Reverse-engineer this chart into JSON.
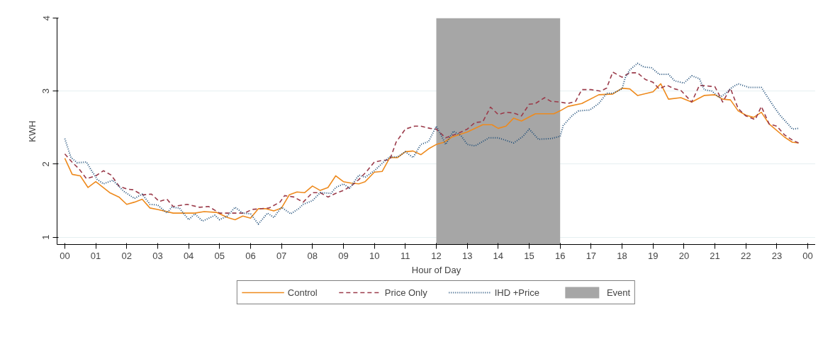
{
  "chart_data": {
    "type": "line",
    "xlabel": "Hour of Day",
    "ylabel": "KWH",
    "xlim": [
      -0.25,
      24.25
    ],
    "ylim": [
      0.9,
      4
    ],
    "xticks": [
      {
        "value": 0,
        "label": "00"
      },
      {
        "value": 1,
        "label": "01"
      },
      {
        "value": 2,
        "label": "02"
      },
      {
        "value": 3,
        "label": "03"
      },
      {
        "value": 4,
        "label": "04"
      },
      {
        "value": 5,
        "label": "05"
      },
      {
        "value": 6,
        "label": "06"
      },
      {
        "value": 7,
        "label": "07"
      },
      {
        "value": 8,
        "label": "08"
      },
      {
        "value": 9,
        "label": "09"
      },
      {
        "value": 10,
        "label": "10"
      },
      {
        "value": 11,
        "label": "11"
      },
      {
        "value": 12,
        "label": "12"
      },
      {
        "value": 13,
        "label": "13"
      },
      {
        "value": 14,
        "label": "14"
      },
      {
        "value": 15,
        "label": "15"
      },
      {
        "value": 16,
        "label": "16"
      },
      {
        "value": 17,
        "label": "17"
      },
      {
        "value": 18,
        "label": "18"
      },
      {
        "value": 19,
        "label": "19"
      },
      {
        "value": 20,
        "label": "20"
      },
      {
        "value": 21,
        "label": "21"
      },
      {
        "value": 22,
        "label": "22"
      },
      {
        "value": 23,
        "label": "23"
      },
      {
        "value": 24,
        "label": "00"
      }
    ],
    "yticks": [
      1,
      2,
      3,
      4
    ],
    "grid": "y",
    "legend": "bottom",
    "marker": "none",
    "bands": [
      {
        "axis": "x",
        "from": 12,
        "to": 16,
        "label": "Event",
        "color": "#a6a6a6"
      }
    ],
    "series": [
      {
        "name": "Control",
        "color": "#ee8a1d",
        "line_style": "solid",
        "x": [
          0,
          0.24,
          0.5,
          0.75,
          1,
          1.45,
          1.75,
          2,
          2.25,
          2.5,
          2.75,
          3,
          3.5,
          4.2,
          4.5,
          4.9,
          5.25,
          5.5,
          5.75,
          6,
          6.25,
          6.5,
          6.75,
          7,
          7.25,
          7.5,
          7.75,
          8,
          8.25,
          8.5,
          8.75,
          9,
          9.25,
          9.5,
          9.7,
          10,
          10.25,
          10.5,
          10.75,
          11,
          11.25,
          11.5,
          11.75,
          12,
          12.25,
          12.5,
          13,
          13.5,
          13.8,
          14,
          14.25,
          14.5,
          14.75,
          15.2,
          15.8,
          16,
          16.25,
          16.7,
          17.25,
          17.7,
          18,
          18.25,
          18.5,
          19,
          19.25,
          19.5,
          19.9,
          20.25,
          20.65,
          21,
          21.25,
          21.5,
          21.75,
          22,
          22.25,
          22.5,
          22.75,
          23.25,
          23.5,
          23.7
        ],
        "values": [
          2.08,
          1.86,
          1.84,
          1.68,
          1.76,
          1.61,
          1.55,
          1.45,
          1.48,
          1.52,
          1.4,
          1.38,
          1.33,
          1.33,
          1.35,
          1.34,
          1.27,
          1.24,
          1.29,
          1.26,
          1.39,
          1.39,
          1.36,
          1.4,
          1.58,
          1.62,
          1.61,
          1.7,
          1.64,
          1.68,
          1.84,
          1.76,
          1.74,
          1.73,
          1.76,
          1.89,
          1.9,
          2.09,
          2.09,
          2.17,
          2.18,
          2.13,
          2.21,
          2.27,
          2.3,
          2.37,
          2.44,
          2.54,
          2.54,
          2.49,
          2.52,
          2.63,
          2.59,
          2.69,
          2.69,
          2.73,
          2.79,
          2.83,
          2.95,
          2.96,
          3.04,
          3.03,
          2.94,
          2.99,
          3.1,
          2.89,
          2.91,
          2.85,
          2.94,
          2.95,
          2.89,
          2.88,
          2.73,
          2.67,
          2.64,
          2.71,
          2.55,
          2.37,
          2.3,
          2.29
        ]
      },
      {
        "name": "Price Only",
        "color": "#9b3b4a",
        "line_style": "dashed",
        "x": [
          0,
          0.25,
          0.45,
          0.7,
          1,
          1.25,
          1.5,
          1.75,
          2,
          2.2,
          2.5,
          2.8,
          3.05,
          3.3,
          3.5,
          3.95,
          4.35,
          4.65,
          5,
          5.5,
          5.8,
          6.05,
          6.6,
          6.95,
          7.1,
          7.4,
          7.7,
          8,
          8.25,
          8.5,
          8.75,
          9,
          9.25,
          9.5,
          9.75,
          10,
          10.25,
          10.5,
          10.7,
          11,
          11.3,
          11.5,
          11.8,
          12,
          12.3,
          12.7,
          13,
          13.25,
          13.5,
          13.75,
          14,
          14.25,
          14.5,
          14.75,
          15,
          15.2,
          15.5,
          15.7,
          16,
          16.25,
          16.5,
          16.7,
          17,
          17.3,
          17.5,
          17.7,
          18,
          18.25,
          18.5,
          18.75,
          19,
          19.2,
          19.45,
          19.7,
          19.9,
          20.25,
          20.5,
          21,
          21.1,
          21.25,
          21.5,
          21.75,
          22,
          22.3,
          22.5,
          22.75,
          23,
          23.25,
          23.5,
          23.7
        ],
        "values": [
          2.14,
          2.02,
          1.94,
          1.8,
          1.84,
          1.91,
          1.85,
          1.7,
          1.66,
          1.65,
          1.58,
          1.59,
          1.49,
          1.52,
          1.42,
          1.45,
          1.41,
          1.42,
          1.33,
          1.33,
          1.33,
          1.38,
          1.4,
          1.48,
          1.57,
          1.55,
          1.48,
          1.61,
          1.61,
          1.55,
          1.6,
          1.64,
          1.7,
          1.79,
          1.9,
          2.03,
          2.05,
          2.06,
          2.3,
          2.48,
          2.52,
          2.52,
          2.49,
          2.48,
          2.36,
          2.42,
          2.48,
          2.57,
          2.58,
          2.78,
          2.68,
          2.71,
          2.7,
          2.66,
          2.82,
          2.83,
          2.91,
          2.86,
          2.85,
          2.83,
          2.86,
          3.02,
          3.02,
          3.0,
          3.04,
          3.26,
          3.19,
          3.25,
          3.25,
          3.16,
          3.12,
          3.03,
          3.08,
          3.03,
          3.01,
          2.85,
          3.08,
          3.06,
          2.98,
          2.85,
          3.04,
          2.76,
          2.66,
          2.61,
          2.79,
          2.55,
          2.52,
          2.4,
          2.33,
          2.29
        ]
      },
      {
        "name": "IHD +Price",
        "color": "#1f4e79",
        "line_style": "dotted",
        "x": [
          0,
          0.2,
          0.4,
          0.7,
          0.85,
          1.05,
          1.25,
          1.55,
          1.9,
          2.25,
          2.5,
          2.75,
          3,
          3.3,
          3.45,
          3.7,
          4,
          4.2,
          4.45,
          4.85,
          5,
          5.25,
          5.5,
          5.75,
          6,
          6.25,
          6.55,
          6.75,
          7,
          7.3,
          7.55,
          7.7,
          8,
          8.25,
          8.6,
          8.75,
          9,
          9.2,
          9.5,
          9.7,
          10,
          10.3,
          10.5,
          10.75,
          11,
          11.25,
          11.5,
          11.75,
          12,
          12.2,
          12.3,
          12.55,
          12.8,
          13,
          13.25,
          13.7,
          14,
          14.5,
          14.8,
          15,
          15.3,
          15.7,
          16,
          16.1,
          16.4,
          16.6,
          16.95,
          17.25,
          17.5,
          17.7,
          18,
          18.1,
          18.25,
          18.5,
          18.7,
          18.95,
          19.2,
          19.5,
          19.7,
          20,
          20.25,
          20.5,
          20.65,
          20.9,
          21.15,
          21.35,
          21.55,
          21.75,
          22.1,
          22.5,
          22.85,
          23.1,
          23.4,
          23.5,
          23.7
        ],
        "values": [
          2.35,
          2.09,
          2.02,
          2.03,
          1.92,
          1.79,
          1.73,
          1.78,
          1.63,
          1.53,
          1.59,
          1.45,
          1.44,
          1.33,
          1.41,
          1.4,
          1.24,
          1.32,
          1.22,
          1.3,
          1.24,
          1.29,
          1.41,
          1.33,
          1.32,
          1.18,
          1.33,
          1.27,
          1.41,
          1.32,
          1.39,
          1.45,
          1.5,
          1.61,
          1.6,
          1.68,
          1.73,
          1.67,
          1.85,
          1.82,
          1.91,
          2.03,
          2.1,
          2.1,
          2.17,
          2.09,
          2.27,
          2.31,
          2.52,
          2.36,
          2.27,
          2.45,
          2.39,
          2.27,
          2.25,
          2.36,
          2.36,
          2.29,
          2.38,
          2.48,
          2.34,
          2.35,
          2.38,
          2.53,
          2.67,
          2.73,
          2.74,
          2.83,
          2.97,
          2.97,
          3.03,
          3.18,
          3.29,
          3.38,
          3.33,
          3.32,
          3.23,
          3.23,
          3.14,
          3.11,
          3.21,
          3.17,
          3.02,
          3.0,
          2.91,
          2.97,
          3.05,
          3.1,
          3.05,
          3.05,
          2.82,
          2.67,
          2.53,
          2.48,
          2.49
        ]
      }
    ]
  }
}
